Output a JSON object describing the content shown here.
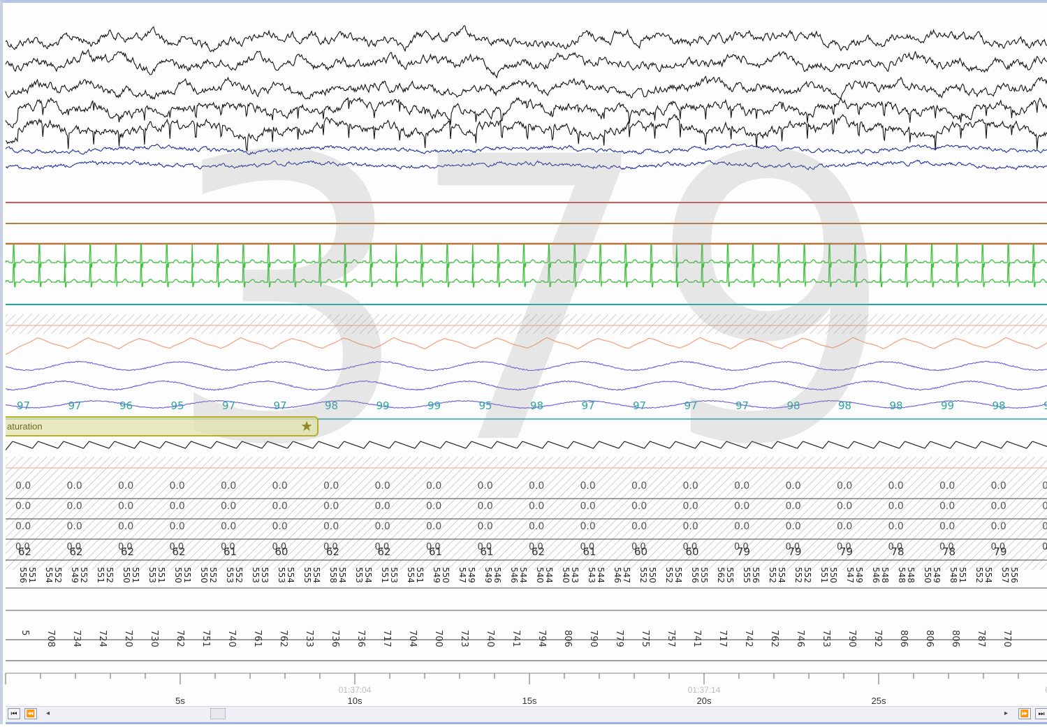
{
  "watermark": "379",
  "event_label": "aturation",
  "event_icon": "star-icon",
  "spo2_values": [
    "97",
    "97",
    "96",
    "95",
    "97",
    "97",
    "98",
    "99",
    "99",
    "95",
    "98",
    "97",
    "97",
    "97",
    "97",
    "98",
    "98",
    "98",
    "99",
    "98",
    "9"
  ],
  "zero_row_value": "0.0",
  "pulse_values": [
    "62",
    "62",
    "62",
    "62",
    "61",
    "60",
    "62",
    "62",
    "61",
    "61",
    "62",
    "61",
    "60",
    "60",
    "79",
    "79",
    "79",
    "78",
    "78",
    "79",
    "7"
  ],
  "rr_pairs": [
    [
      "556",
      "551"
    ],
    [
      "554",
      "552"
    ],
    [
      "549",
      "552"
    ],
    [
      "551",
      "552"
    ],
    [
      "550",
      "551"
    ],
    [
      "553",
      "551"
    ],
    [
      "550",
      "551"
    ],
    [
      "550",
      "552"
    ],
    [
      "553",
      "552"
    ],
    [
      "553",
      "553"
    ],
    [
      "553",
      "554"
    ],
    [
      "555",
      "554"
    ],
    [
      "558",
      "554"
    ],
    [
      "553",
      "554"
    ],
    [
      "551",
      "553"
    ],
    [
      "554",
      "551"
    ],
    [
      "549",
      "550"
    ],
    [
      "547",
      "549"
    ],
    [
      "549",
      "546"
    ],
    [
      "546",
      "544"
    ],
    [
      "540",
      "544"
    ],
    [
      "540",
      "543"
    ],
    [
      "543",
      "544"
    ],
    [
      "546",
      "547"
    ],
    [
      "552",
      "550"
    ],
    [
      "552",
      "554"
    ],
    [
      "556",
      "555"
    ],
    [
      "562",
      "555"
    ],
    [
      "555",
      "556"
    ],
    [
      "552",
      "554"
    ],
    [
      "552",
      "552"
    ],
    [
      "551",
      "550"
    ],
    [
      "547",
      "549"
    ],
    [
      "546",
      "548"
    ],
    [
      "548",
      "548"
    ],
    [
      "550",
      "549"
    ],
    [
      "548",
      "551"
    ],
    [
      "552",
      "554"
    ],
    [
      "557",
      "556"
    ]
  ],
  "row12_values": [
    "5",
    "708",
    "734",
    "724",
    "720",
    "730",
    "762",
    "751",
    "740",
    "761",
    "762",
    "733",
    "736",
    "736",
    "717",
    "704",
    "700",
    "723",
    "740",
    "741",
    "794",
    "806",
    "790",
    "779",
    "775",
    "757",
    "741",
    "717",
    "742",
    "762",
    "746",
    "753",
    "790",
    "792",
    "806",
    "806",
    "806",
    "787",
    "770"
  ],
  "timeline": {
    "clock_labels": [
      {
        "t": "01:37:04",
        "at": 10
      },
      {
        "t": "01:37:14",
        "at": 20
      },
      {
        "t": "01:3",
        "at": 30
      }
    ],
    "second_labels": [
      {
        "t": "5s",
        "at": 5
      },
      {
        "t": "10s",
        "at": 10
      },
      {
        "t": "15s",
        "at": 15
      },
      {
        "t": "20s",
        "at": 20
      },
      {
        "t": "25s",
        "at": 25
      },
      {
        "t": "30",
        "at": 30
      }
    ]
  },
  "colors": {
    "eeg": "#111111",
    "eog": "#1f2f9a",
    "red_channel": "#d9534f",
    "brown_channel": "#b7763e",
    "ecg": "#3ec43e",
    "teal": "#1fa7a7",
    "flow": "#f0a07a",
    "effort": "#6a5fd8",
    "spo2_text": "#2aa4a4"
  },
  "nav": {
    "first": "⏮",
    "prev": "⏪",
    "left": "◂",
    "right": "▸",
    "next": "⏩",
    "last": "⏭"
  }
}
